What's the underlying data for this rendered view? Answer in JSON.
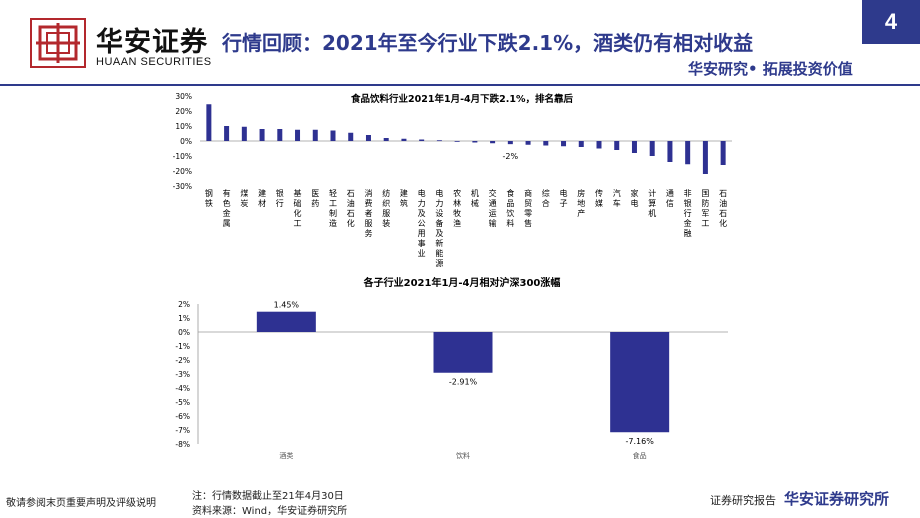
{
  "header": {
    "brand_cn": "华安证券",
    "brand_en": "HUAAN SECURITIES",
    "headline": "行情回顾：2021年至今行业下跌2.1%，酒类仍有相对收益",
    "tagline": "华安研究• 拓展投资价值",
    "page_number": "4"
  },
  "footer": {
    "disclaimer": "敬请参阅末页重要声明及评级说明",
    "note": "注：行情数据截止至21年4月30日",
    "source": "资料来源：Wind，华安证券研究所",
    "report_label": "证券研究报告",
    "institute": "华安证券研究所"
  },
  "colors": {
    "brand": "#2e3a8c",
    "bar": "#2e3192",
    "logo": "#b3282d"
  },
  "chart_data": [
    {
      "type": "bar",
      "title": "食品饮料行业2021年1月-4月下跌2.1%，排名靠后",
      "ylim": [
        -30,
        30
      ],
      "yticks": [
        30,
        20,
        10,
        0,
        -10,
        -20,
        -30
      ],
      "ytick_suffix": "%",
      "annotations": [
        {
          "category": "食品饮料",
          "text": "-2%"
        }
      ],
      "categories": [
        "钢铁",
        "有色金属",
        "煤炭",
        "建材",
        "银行",
        "基础化工",
        "医药",
        "轻工制造",
        "石油石化",
        "消费者服务",
        "纺织服装",
        "建筑",
        "电力及公用事业",
        "电力设备及新能源",
        "农林牧渔",
        "机械",
        "交通运输",
        "食品饮料",
        "商贸零售",
        "综合",
        "电子",
        "房地产",
        "传媒",
        "汽车",
        "家电",
        "计算机",
        "通信",
        "非银行金融",
        "国防军工",
        "石油石化"
      ],
      "values": [
        24.5,
        10,
        9.5,
        8,
        8,
        7.5,
        7.5,
        7,
        5.5,
        4,
        2,
        1.5,
        1,
        0.5,
        -0.5,
        -1,
        -1.5,
        -2.1,
        -2.5,
        -3,
        -3.5,
        -4,
        -5,
        -6,
        -8,
        -10,
        -14,
        -15.5,
        -22,
        -16
      ]
    },
    {
      "type": "bar",
      "title": "各子行业2021年1月-4月相对沪深300涨幅",
      "ylim": [
        -8,
        2
      ],
      "yticks": [
        2,
        1,
        0,
        -1,
        -2,
        -3,
        -4,
        -5,
        -6,
        -7,
        -8
      ],
      "ytick_suffix": "%",
      "categories": [
        "酒类",
        "饮料",
        "食品"
      ],
      "values": [
        1.45,
        -2.91,
        -7.16
      ],
      "data_labels": [
        "1.45%",
        "-2.91%",
        "-7.16%"
      ]
    }
  ]
}
